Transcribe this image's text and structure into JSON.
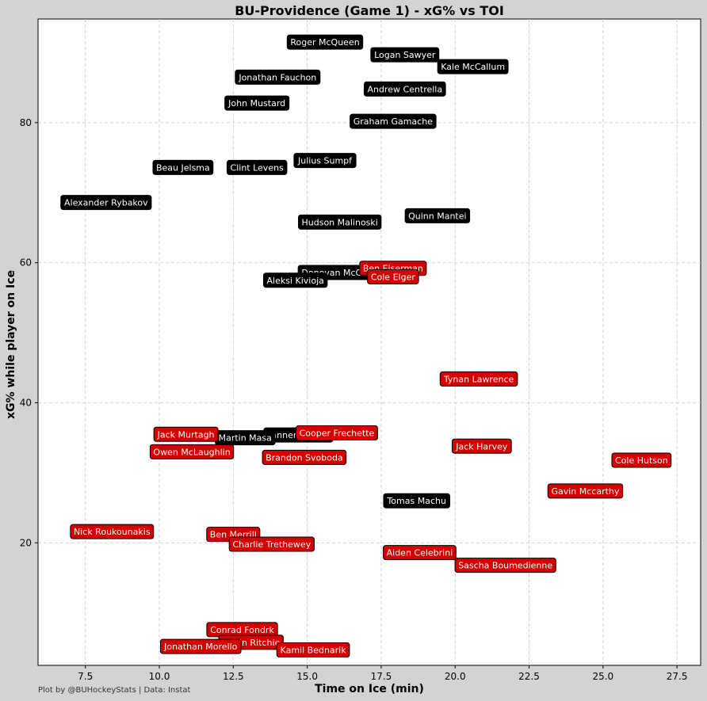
{
  "chart_data": {
    "type": "scatter",
    "title": "BU-Providence (Game 1) - xG% vs TOI",
    "xlabel": "Time on Ice (min)",
    "ylabel": "xG% while player on Ice",
    "xlim": [
      5.9,
      28.3
    ],
    "ylim": [
      2.5,
      94.8
    ],
    "xticks": [
      7.5,
      10.0,
      12.5,
      15.0,
      17.5,
      20.0,
      22.5,
      25.0,
      27.5
    ],
    "xtick_labels": [
      "7.5",
      "10.0",
      "12.5",
      "15.0",
      "17.5",
      "20.0",
      "22.5",
      "25.0",
      "27.5"
    ],
    "yticks": [
      20,
      40,
      60,
      80
    ],
    "ytick_labels": [
      "20",
      "40",
      "60",
      "80"
    ],
    "grid": true,
    "series": [
      {
        "color": "#000000",
        "points": [
          {
            "name": "Roger McQueen",
            "x": 15.6,
            "y": 91.5
          },
          {
            "name": "Logan Sawyer",
            "x": 18.3,
            "y": 89.7
          },
          {
            "name": "Kale McCallum",
            "x": 20.6,
            "y": 88.0
          },
          {
            "name": "Jonathan Fauchon",
            "x": 14.0,
            "y": 86.5
          },
          {
            "name": "Andrew Centrella",
            "x": 18.3,
            "y": 84.8
          },
          {
            "name": "John Mustard",
            "x": 13.3,
            "y": 82.8
          },
          {
            "name": "Graham Gamache",
            "x": 17.9,
            "y": 80.2
          },
          {
            "name": "Julius Sumpf",
            "x": 15.6,
            "y": 74.6
          },
          {
            "name": "Beau Jelsma",
            "x": 10.8,
            "y": 73.6
          },
          {
            "name": "Clint Levens",
            "x": 13.3,
            "y": 73.6
          },
          {
            "name": "Alexander Rybakov",
            "x": 8.2,
            "y": 68.6
          },
          {
            "name": "Quinn Mantei",
            "x": 19.4,
            "y": 66.7
          },
          {
            "name": "Hudson Malinoski",
            "x": 16.1,
            "y": 65.8
          },
          {
            "name": "Donovan McCoy",
            "x": 16.0,
            "y": 58.6
          },
          {
            "name": "Aleksi Kivioja",
            "x": 14.6,
            "y": 57.5
          },
          {
            "name": "Tomas Machu",
            "x": 18.7,
            "y": 26.0
          },
          {
            "name": "Tanner Adams",
            "x": 14.7,
            "y": 35.4
          },
          {
            "name": "Martin Masa",
            "x": 12.9,
            "y": 35.0
          }
        ]
      },
      {
        "color": "#d40000",
        "points": [
          {
            "name": "Ben Eiserman",
            "x": 17.9,
            "y": 59.2
          },
          {
            "name": "Cole Elger",
            "x": 17.9,
            "y": 58.0
          },
          {
            "name": "Tynan Lawrence",
            "x": 20.8,
            "y": 43.4
          },
          {
            "name": "Cooper Frechette",
            "x": 16.0,
            "y": 35.7
          },
          {
            "name": "Jack Murtagh",
            "x": 10.9,
            "y": 35.5
          },
          {
            "name": "Jack Harvey",
            "x": 20.9,
            "y": 33.8
          },
          {
            "name": "Owen McLaughlin",
            "x": 11.1,
            "y": 33.0
          },
          {
            "name": "Brandon Svoboda",
            "x": 14.9,
            "y": 32.2
          },
          {
            "name": "Cole Hutson",
            "x": 26.3,
            "y": 31.8
          },
          {
            "name": "Gavin Mccarthy",
            "x": 24.4,
            "y": 27.4
          },
          {
            "name": "Nick Roukounakis",
            "x": 8.4,
            "y": 21.6
          },
          {
            "name": "Ben Merrill",
            "x": 12.5,
            "y": 21.2
          },
          {
            "name": "Charlie Trethewey",
            "x": 13.8,
            "y": 19.8
          },
          {
            "name": "Aiden Celebrini",
            "x": 18.8,
            "y": 18.6
          },
          {
            "name": "Sascha Boumedienne",
            "x": 21.7,
            "y": 16.8
          },
          {
            "name": "Conrad Fondrk",
            "x": 12.8,
            "y": 7.6
          },
          {
            "name": "Gavin Ritchie",
            "x": 13.1,
            "y": 5.8
          },
          {
            "name": "Jonathan Morello",
            "x": 11.4,
            "y": 5.2
          },
          {
            "name": "Kamil Bednarik",
            "x": 15.2,
            "y": 4.7
          }
        ]
      }
    ]
  },
  "footer": "Plot by @BUHockeyStats | Data: Instat"
}
